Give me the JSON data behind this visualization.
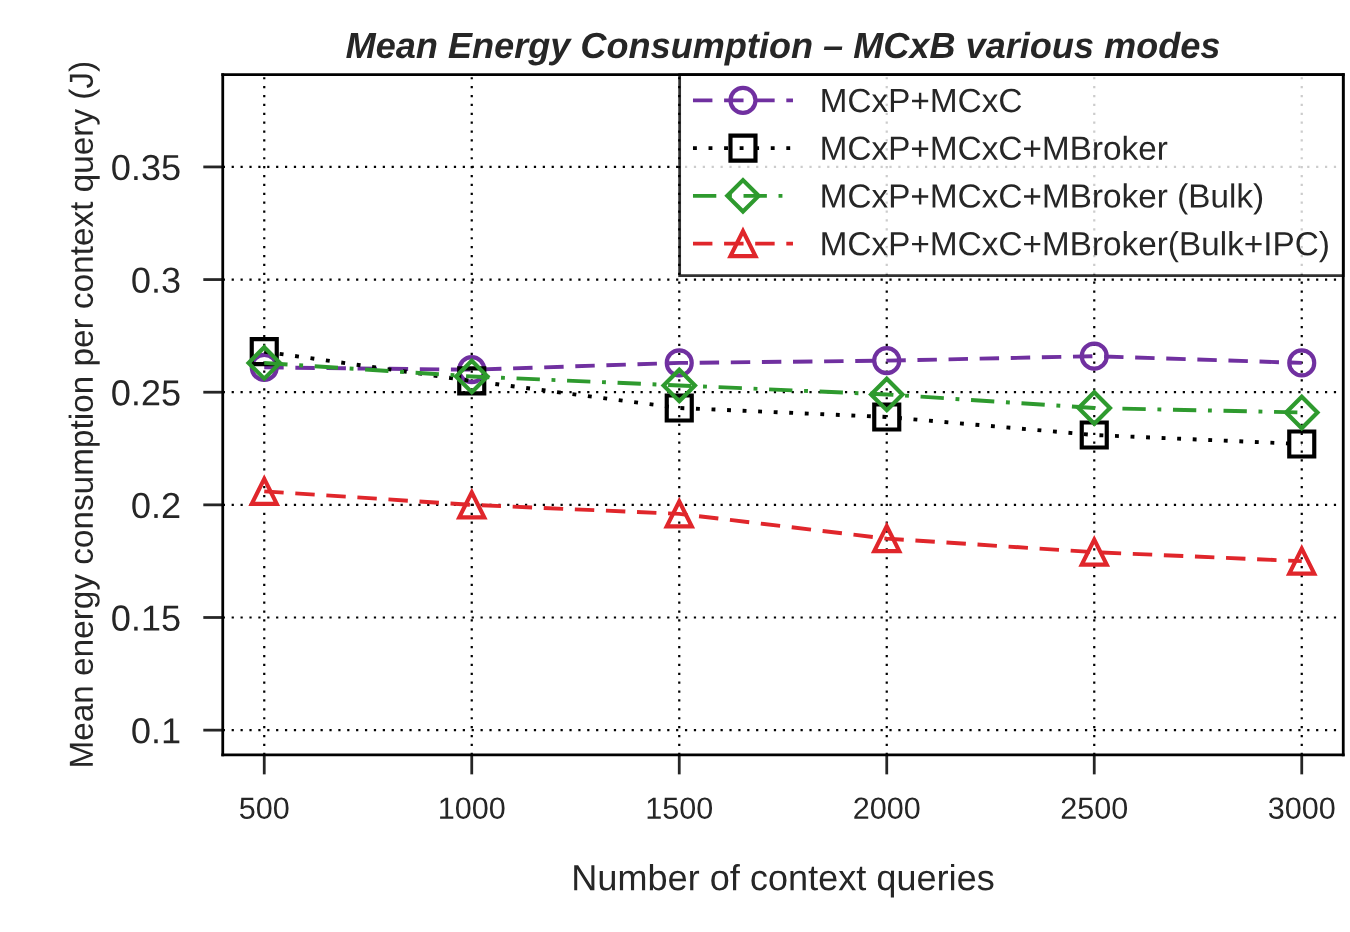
{
  "chart_data": {
    "type": "line",
    "title": "Mean Energy Consumption – MCxB various modes",
    "xlabel": "Number of context queries",
    "ylabel": "Mean energy consumption per context query (J)",
    "x": [
      500,
      1000,
      1500,
      2000,
      2500,
      3000
    ],
    "series": [
      {
        "name": "MCxP+MCxC",
        "color": "#7030a0",
        "marker": "circle",
        "line_style": "dashed",
        "values": [
          0.261,
          0.26,
          0.263,
          0.264,
          0.266,
          0.263
        ]
      },
      {
        "name": "MCxP+MCxC+MBroker",
        "color": "#000000",
        "marker": "square",
        "line_style": "dotted",
        "values": [
          0.268,
          0.255,
          0.243,
          0.239,
          0.231,
          0.227
        ]
      },
      {
        "name": "MCxP+MCxC+MBroker (Bulk)",
        "color": "#2e9a2e",
        "marker": "diamond",
        "line_style": "dashdot",
        "values": [
          0.263,
          0.257,
          0.253,
          0.249,
          0.243,
          0.241
        ]
      },
      {
        "name": "MCxP+MCxC+MBroker(Bulk+IPC)",
        "color": "#e0262b",
        "marker": "triangle",
        "line_style": "dashed",
        "values": [
          0.206,
          0.2,
          0.196,
          0.185,
          0.179,
          0.175
        ]
      }
    ],
    "xlim": [
      400,
      3100
    ],
    "ylim": [
      0.089,
      0.391
    ],
    "xticks": [
      500,
      1000,
      1500,
      2000,
      2500,
      3000
    ],
    "yticks": [
      0.1,
      0.15,
      0.2,
      0.25,
      0.3,
      0.35
    ],
    "grid": true,
    "legend": "top right"
  }
}
